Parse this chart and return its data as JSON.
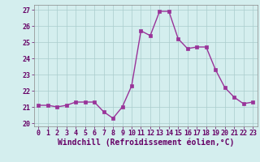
{
  "x": [
    0,
    1,
    2,
    3,
    4,
    5,
    6,
    7,
    8,
    9,
    10,
    11,
    12,
    13,
    14,
    15,
    16,
    17,
    18,
    19,
    20,
    21,
    22,
    23
  ],
  "y": [
    21.1,
    21.1,
    21.0,
    21.1,
    21.3,
    21.3,
    21.3,
    20.7,
    20.3,
    21.0,
    22.3,
    25.7,
    25.4,
    26.9,
    26.9,
    25.2,
    24.6,
    24.7,
    24.7,
    23.3,
    22.2,
    21.6,
    21.2,
    21.3
  ],
  "line_color": "#993399",
  "marker": "s",
  "markersize": 2.5,
  "linewidth": 1.0,
  "bg_color": "#d4eeee",
  "grid_color": "#aacccc",
  "xlabel": "Windchill (Refroidissement éolien,°C)",
  "xlabel_fontsize": 7,
  "tick_fontsize": 6,
  "ylim": [
    19.8,
    27.3
  ],
  "yticks": [
    20,
    21,
    22,
    23,
    24,
    25,
    26,
    27
  ],
  "xticks": [
    0,
    1,
    2,
    3,
    4,
    5,
    6,
    7,
    8,
    9,
    10,
    11,
    12,
    13,
    14,
    15,
    16,
    17,
    18,
    19,
    20,
    21,
    22,
    23
  ],
  "text_color": "#660066"
}
